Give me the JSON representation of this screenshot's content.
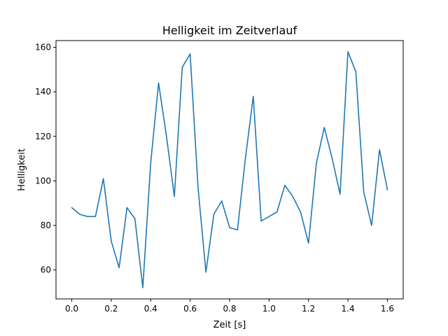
{
  "chart_data": {
    "type": "line",
    "title": "Helligkeit im Zeitverlauf",
    "xlabel": "Zeit [s]",
    "ylabel": "Helligkeit",
    "xlim": [
      -0.08,
      1.68
    ],
    "ylim": [
      47,
      163
    ],
    "x_ticks": [
      0.0,
      0.2,
      0.4,
      0.6,
      0.8,
      1.0,
      1.2,
      1.4,
      1.6
    ],
    "x_tick_labels": [
      "0.0",
      "0.2",
      "0.4",
      "0.6",
      "0.8",
      "1.0",
      "1.2",
      "1.4",
      "1.6"
    ],
    "y_ticks": [
      60,
      80,
      100,
      120,
      140,
      160
    ],
    "y_tick_labels": [
      "60",
      "80",
      "100",
      "120",
      "140",
      "160"
    ],
    "grid": false,
    "series": [
      {
        "color": "#1f77b4",
        "x": [
          0.0,
          0.04,
          0.08,
          0.12,
          0.16,
          0.2,
          0.24,
          0.28,
          0.32,
          0.36,
          0.4,
          0.44,
          0.48,
          0.52,
          0.56,
          0.6,
          0.64,
          0.68,
          0.72,
          0.76,
          0.8,
          0.84,
          0.88,
          0.92,
          0.96,
          1.0,
          1.04,
          1.08,
          1.12,
          1.16,
          1.2,
          1.24,
          1.28,
          1.32,
          1.36,
          1.4,
          1.44,
          1.48,
          1.52,
          1.56,
          1.6
        ],
        "y": [
          88,
          85,
          84,
          84,
          101,
          73,
          61,
          88,
          83,
          52,
          108,
          144,
          120,
          93,
          151,
          157,
          97,
          59,
          85,
          91,
          79,
          78,
          110,
          138,
          82,
          84,
          86,
          98,
          93,
          86,
          72,
          108,
          124,
          110,
          94,
          158,
          149,
          95,
          80,
          114,
          96
        ]
      }
    ]
  }
}
